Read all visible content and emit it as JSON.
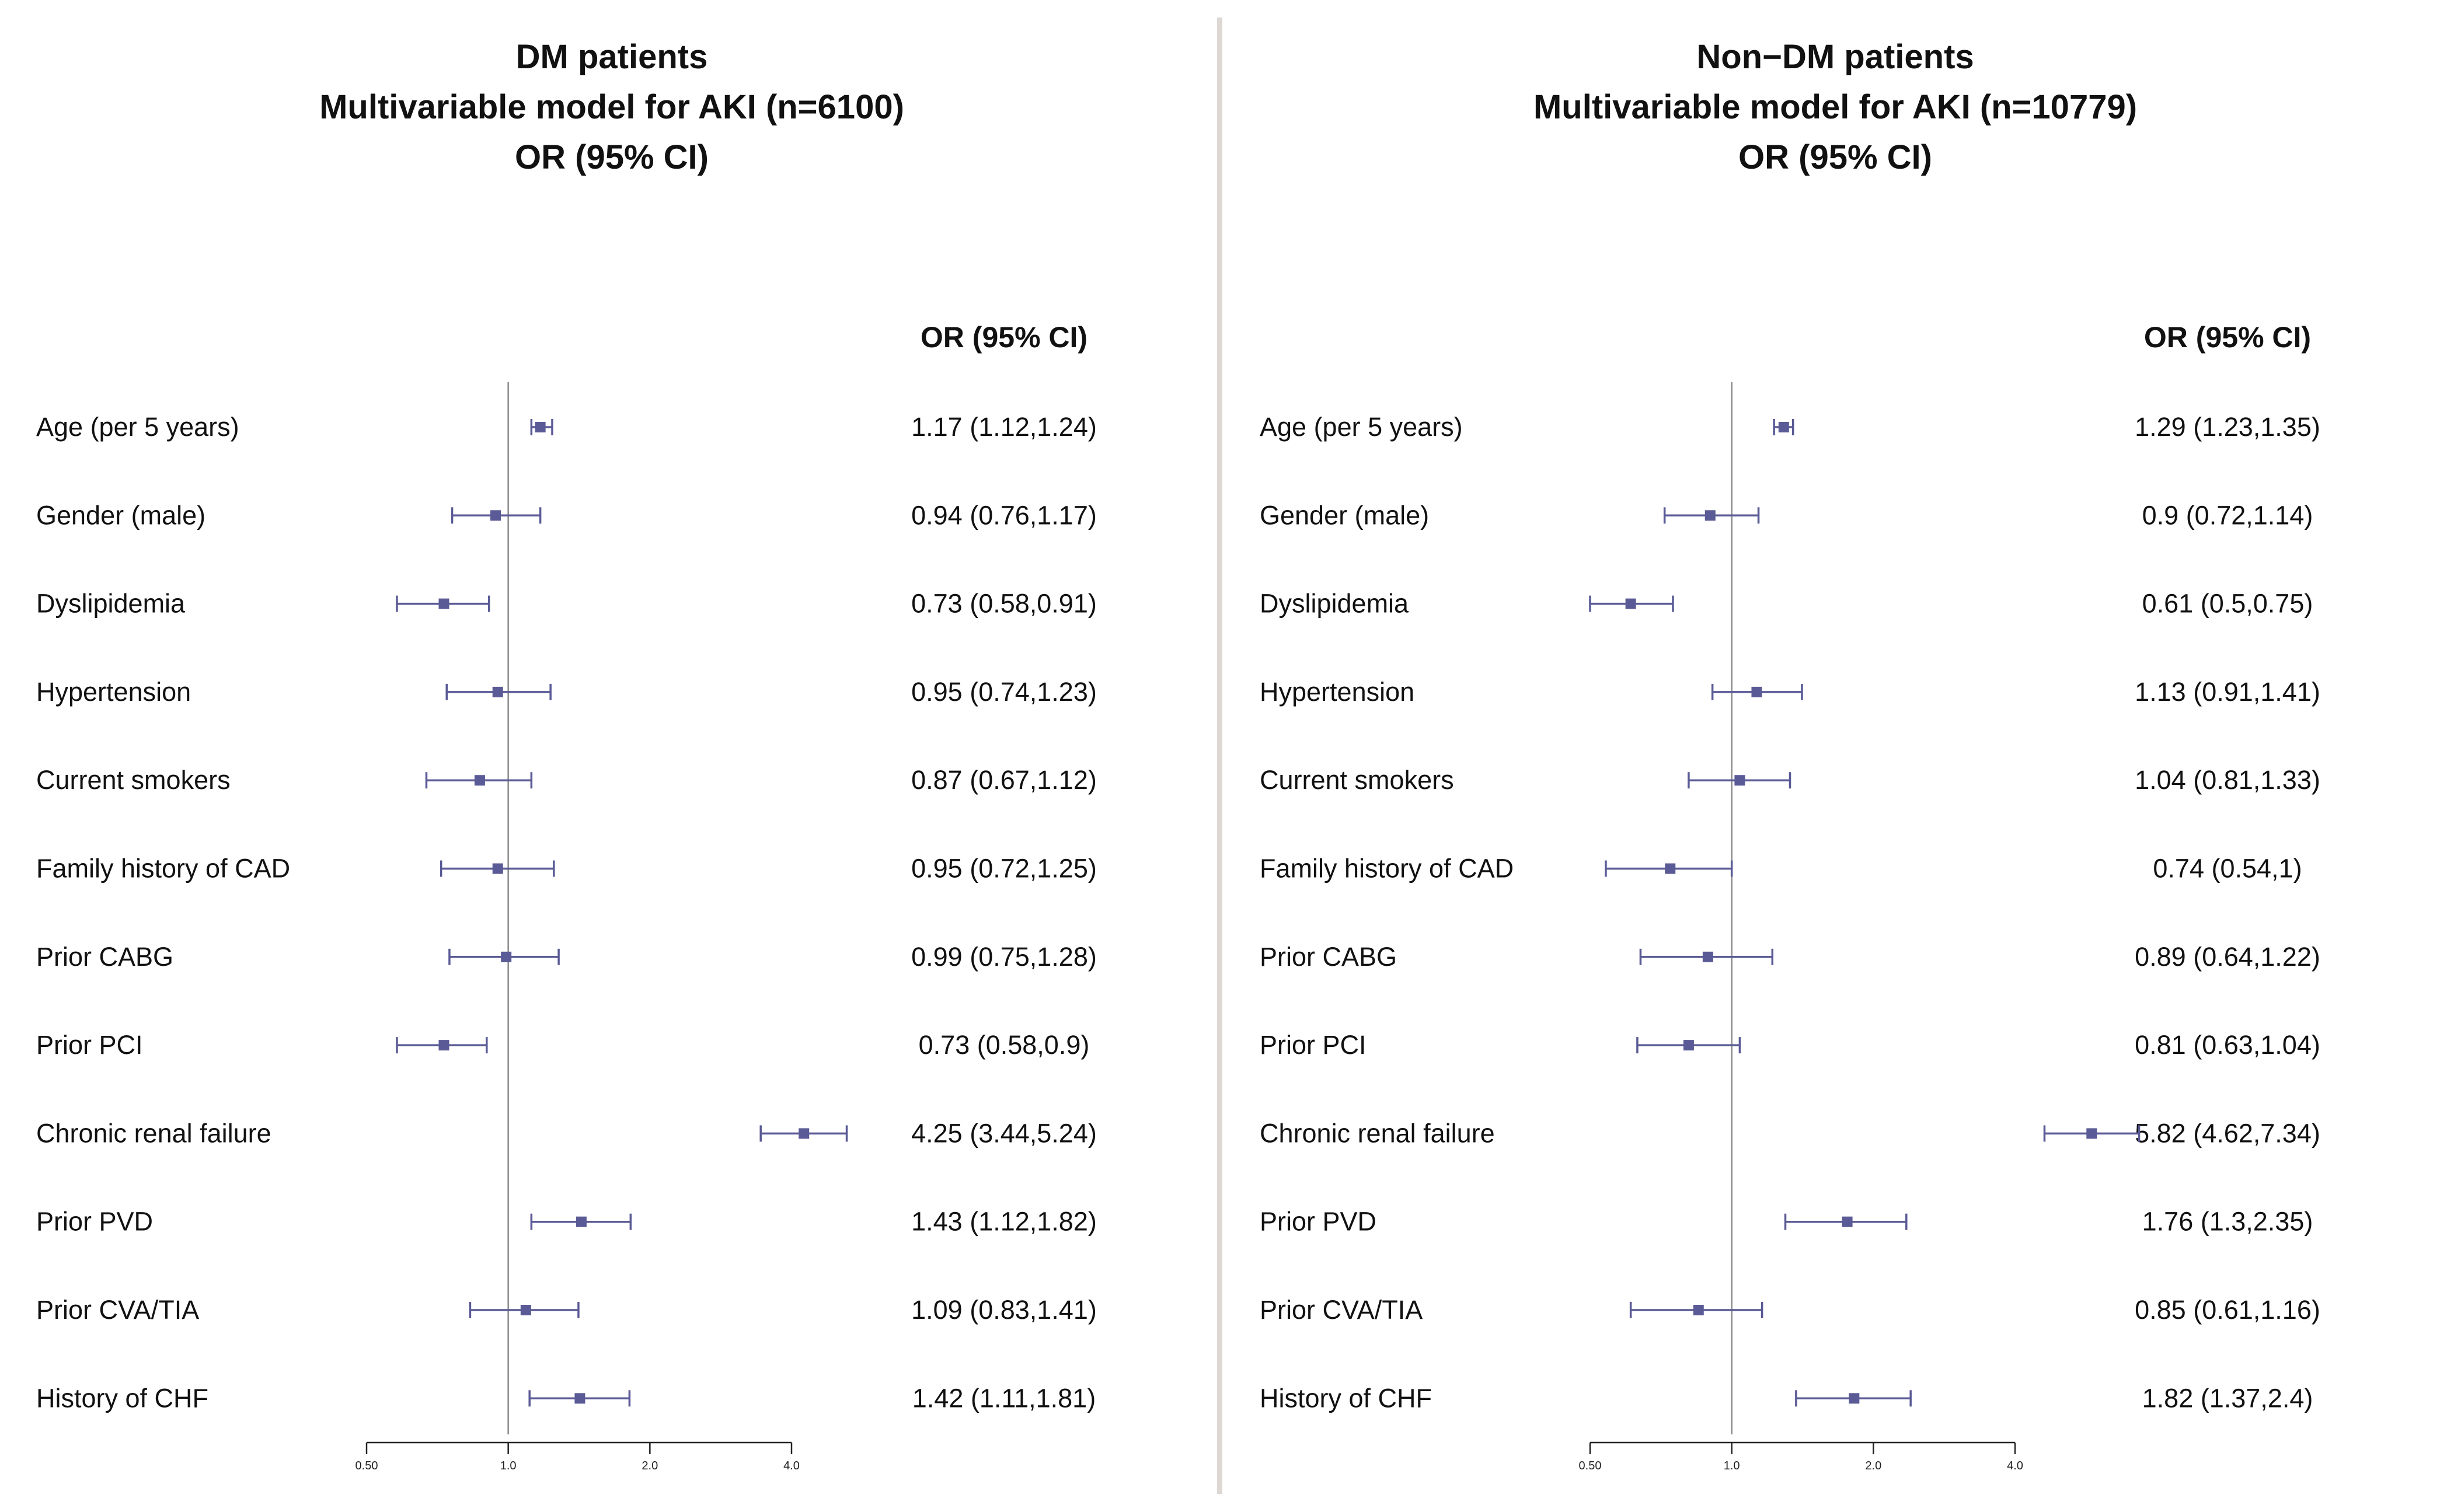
{
  "chart_data": [
    {
      "type": "forest",
      "panel_id": "left",
      "title": [
        "DM patients",
        "Multivariable model for AKI (n=6100)",
        "OR (95% CI)"
      ],
      "column_header": "OR (95% CI)",
      "x_scale": "log",
      "xlim": [
        0.5,
        4.0
      ],
      "reference_line": 1.0,
      "x_ticks": [
        0.5,
        1.0,
        2.0,
        4.0
      ],
      "x_tick_labels": [
        "0.50",
        "1.0",
        "2.0",
        "4.0"
      ],
      "marker_color": "#5a5a96",
      "rows": [
        {
          "label": "Age (per 5 years)",
          "or": 1.17,
          "lo": 1.12,
          "hi": 1.24,
          "text": "1.17 (1.12,1.24)"
        },
        {
          "label": "Gender (male)",
          "or": 0.94,
          "lo": 0.76,
          "hi": 1.17,
          "text": "0.94 (0.76,1.17)"
        },
        {
          "label": "Dyslipidemia",
          "or": 0.73,
          "lo": 0.58,
          "hi": 0.91,
          "text": "0.73 (0.58,0.91)"
        },
        {
          "label": "Hypertension",
          "or": 0.95,
          "lo": 0.74,
          "hi": 1.23,
          "text": "0.95 (0.74,1.23)"
        },
        {
          "label": "Current smokers",
          "or": 0.87,
          "lo": 0.67,
          "hi": 1.12,
          "text": "0.87 (0.67,1.12)"
        },
        {
          "label": "Family history of CAD",
          "or": 0.95,
          "lo": 0.72,
          "hi": 1.25,
          "text": "0.95 (0.72,1.25)"
        },
        {
          "label": "Prior CABG",
          "or": 0.99,
          "lo": 0.75,
          "hi": 1.28,
          "text": "0.99 (0.75,1.28)"
        },
        {
          "label": "Prior PCI",
          "or": 0.73,
          "lo": 0.58,
          "hi": 0.9,
          "text": "0.73 (0.58,0.9)"
        },
        {
          "label": "Chronic renal failure",
          "or": 4.25,
          "lo": 3.44,
          "hi": 5.24,
          "text": "4.25 (3.44,5.24)"
        },
        {
          "label": "Prior PVD",
          "or": 1.43,
          "lo": 1.12,
          "hi": 1.82,
          "text": "1.43 (1.12,1.82)"
        },
        {
          "label": "Prior CVA/TIA",
          "or": 1.09,
          "lo": 0.83,
          "hi": 1.41,
          "text": "1.09 (0.83,1.41)"
        },
        {
          "label": "History of CHF",
          "or": 1.42,
          "lo": 1.11,
          "hi": 1.81,
          "text": "1.42 (1.11,1.81)"
        }
      ]
    },
    {
      "type": "forest",
      "panel_id": "right",
      "title": [
        "Non−DM patients",
        "Multivariable model for AKI (n=10779)",
        "OR (95% CI)"
      ],
      "column_header": "OR (95% CI)",
      "x_scale": "log",
      "xlim": [
        0.5,
        4.0
      ],
      "reference_line": 1.0,
      "x_ticks": [
        0.5,
        1.0,
        2.0,
        4.0
      ],
      "x_tick_labels": [
        "0.50",
        "1.0",
        "2.0",
        "4.0"
      ],
      "marker_color": "#5a5a96",
      "rows": [
        {
          "label": "Age (per 5 years)",
          "or": 1.29,
          "lo": 1.23,
          "hi": 1.35,
          "text": "1.29 (1.23,1.35)"
        },
        {
          "label": "Gender (male)",
          "or": 0.9,
          "lo": 0.72,
          "hi": 1.14,
          "text": "0.9 (0.72,1.14)"
        },
        {
          "label": "Dyslipidemia",
          "or": 0.61,
          "lo": 0.5,
          "hi": 0.75,
          "text": "0.61 (0.5,0.75)"
        },
        {
          "label": "Hypertension",
          "or": 1.13,
          "lo": 0.91,
          "hi": 1.41,
          "text": "1.13 (0.91,1.41)"
        },
        {
          "label": "Current smokers",
          "or": 1.04,
          "lo": 0.81,
          "hi": 1.33,
          "text": "1.04 (0.81,1.33)"
        },
        {
          "label": "Family history of CAD",
          "or": 0.74,
          "lo": 0.54,
          "hi": 1.0,
          "text": "0.74 (0.54,1)"
        },
        {
          "label": "Prior CABG",
          "or": 0.89,
          "lo": 0.64,
          "hi": 1.22,
          "text": "0.89 (0.64,1.22)"
        },
        {
          "label": "Prior PCI",
          "or": 0.81,
          "lo": 0.63,
          "hi": 1.04,
          "text": "0.81 (0.63,1.04)"
        },
        {
          "label": "Chronic renal failure",
          "or": 5.82,
          "lo": 4.62,
          "hi": 7.34,
          "text": "5.82 (4.62,7.34)"
        },
        {
          "label": "Prior PVD",
          "or": 1.76,
          "lo": 1.3,
          "hi": 2.35,
          "text": "1.76 (1.3,2.35)"
        },
        {
          "label": "Prior CVA/TIA",
          "or": 0.85,
          "lo": 0.61,
          "hi": 1.16,
          "text": "0.85 (0.61,1.16)"
        },
        {
          "label": "History of CHF",
          "or": 1.82,
          "lo": 1.37,
          "hi": 2.4,
          "text": "1.82 (1.37,2.4)"
        }
      ]
    }
  ]
}
